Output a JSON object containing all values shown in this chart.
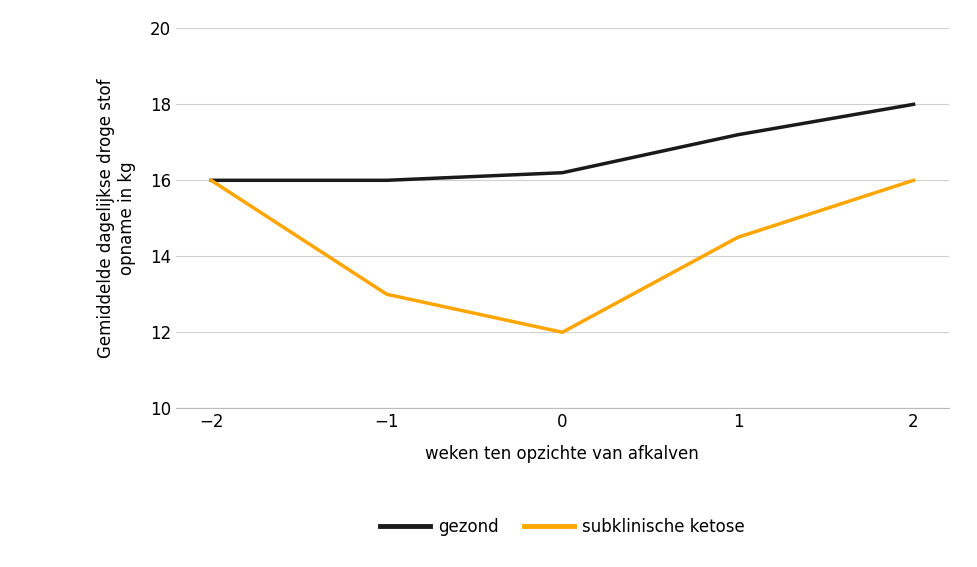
{
  "x": [
    -2,
    -1,
    0,
    1,
    2
  ],
  "gezond": [
    16,
    16,
    16.2,
    17.2,
    18
  ],
  "ketose": [
    16,
    13,
    12,
    14.5,
    16
  ],
  "gezond_color": "#1a1a1a",
  "ketose_color": "#FFA500",
  "line_width": 2.5,
  "xlabel": "weken ten opzichte van afkalven",
  "ylabel_line1": "Gemiddelde dagelijkse droge stof",
  "ylabel_line2": "opname in kg",
  "ylim": [
    10,
    20
  ],
  "yticks": [
    10,
    12,
    14,
    16,
    18,
    20
  ],
  "xticks": [
    -2,
    -1,
    0,
    1,
    2
  ],
  "legend_gezond": "gezond",
  "legend_ketose": "subklinische ketose",
  "bg_color": "#ffffff",
  "grid_color": "#d0d0d0",
  "xlabel_fontsize": 12,
  "ylabel_fontsize": 12,
  "tick_fontsize": 12,
  "legend_fontsize": 12
}
